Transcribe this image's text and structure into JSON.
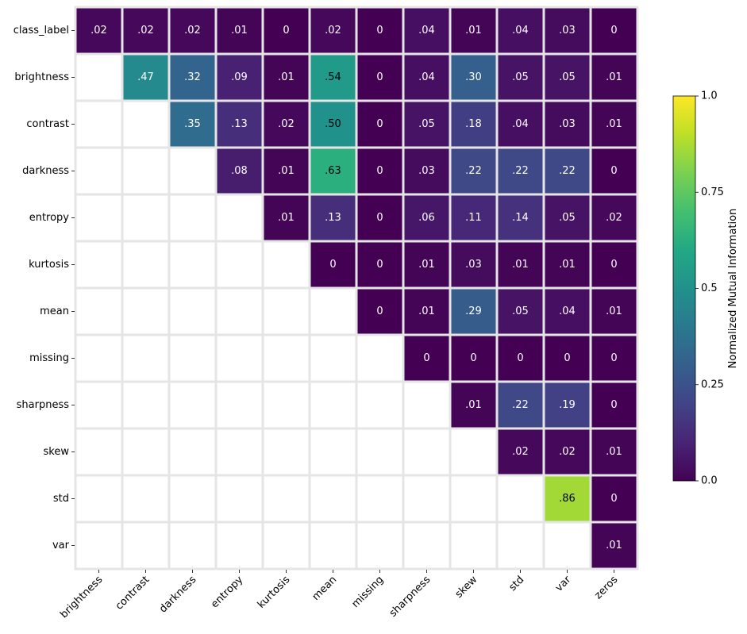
{
  "chart_data": {
    "type": "heatmap",
    "title": "",
    "row_labels": [
      "class_label",
      "brightness",
      "contrast",
      "darkness",
      "entropy",
      "kurtosis",
      "mean",
      "missing",
      "sharpness",
      "skew",
      "std",
      "var"
    ],
    "col_labels": [
      "brightness",
      "contrast",
      "darkness",
      "entropy",
      "kurtosis",
      "mean",
      "missing",
      "sharpness",
      "skew",
      "std",
      "var",
      "zeros"
    ],
    "values": [
      [
        0.02,
        0.02,
        0.02,
        0.01,
        0,
        0.02,
        0,
        0.04,
        0.01,
        0.04,
        0.03,
        0
      ],
      [
        null,
        0.47,
        0.32,
        0.09,
        0.01,
        0.54,
        0,
        0.04,
        0.3,
        0.05,
        0.05,
        0.01
      ],
      [
        null,
        null,
        0.35,
        0.13,
        0.02,
        0.5,
        0,
        0.05,
        0.18,
        0.04,
        0.03,
        0.01
      ],
      [
        null,
        null,
        null,
        0.08,
        0.01,
        0.63,
        0,
        0.03,
        0.22,
        0.22,
        0.22,
        0
      ],
      [
        null,
        null,
        null,
        null,
        0.01,
        0.13,
        0,
        0.06,
        0.11,
        0.14,
        0.05,
        0.02
      ],
      [
        null,
        null,
        null,
        null,
        null,
        0,
        0,
        0.01,
        0.03,
        0.01,
        0.01,
        0
      ],
      [
        null,
        null,
        null,
        null,
        null,
        null,
        0,
        0.01,
        0.29,
        0.05,
        0.04,
        0.01
      ],
      [
        null,
        null,
        null,
        null,
        null,
        null,
        null,
        0,
        0,
        0,
        0,
        0
      ],
      [
        null,
        null,
        null,
        null,
        null,
        null,
        null,
        null,
        0.01,
        0.22,
        0.19,
        0
      ],
      [
        null,
        null,
        null,
        null,
        null,
        null,
        null,
        null,
        null,
        0.02,
        0.02,
        0.01
      ],
      [
        null,
        null,
        null,
        null,
        null,
        null,
        null,
        null,
        null,
        null,
        0.86,
        0
      ],
      [
        null,
        null,
        null,
        null,
        null,
        null,
        null,
        null,
        null,
        null,
        null,
        0.01
      ]
    ],
    "value_labels": [
      [
        ".02",
        ".02",
        ".02",
        ".01",
        "0",
        ".02",
        "0",
        ".04",
        ".01",
        ".04",
        ".03",
        "0"
      ],
      [
        null,
        ".47",
        ".32",
        ".09",
        ".01",
        ".54",
        "0",
        ".04",
        ".30",
        ".05",
        ".05",
        ".01"
      ],
      [
        null,
        null,
        ".35",
        ".13",
        ".02",
        ".50",
        "0",
        ".05",
        ".18",
        ".04",
        ".03",
        ".01"
      ],
      [
        null,
        null,
        null,
        ".08",
        ".01",
        ".63",
        "0",
        ".03",
        ".22",
        ".22",
        ".22",
        "0"
      ],
      [
        null,
        null,
        null,
        null,
        ".01",
        ".13",
        "0",
        ".06",
        ".11",
        ".14",
        ".05",
        ".02"
      ],
      [
        null,
        null,
        null,
        null,
        null,
        "0",
        "0",
        ".01",
        ".03",
        ".01",
        ".01",
        "0"
      ],
      [
        null,
        null,
        null,
        null,
        null,
        null,
        "0",
        ".01",
        ".29",
        ".05",
        ".04",
        ".01"
      ],
      [
        null,
        null,
        null,
        null,
        null,
        null,
        null,
        "0",
        "0",
        "0",
        "0",
        "0"
      ],
      [
        null,
        null,
        null,
        null,
        null,
        null,
        null,
        null,
        ".01",
        ".22",
        ".19",
        "0"
      ],
      [
        null,
        null,
        null,
        null,
        null,
        null,
        null,
        null,
        null,
        ".02",
        ".02",
        ".01"
      ],
      [
        null,
        null,
        null,
        null,
        null,
        null,
        null,
        null,
        null,
        null,
        ".86",
        "0"
      ],
      [
        null,
        null,
        null,
        null,
        null,
        null,
        null,
        null,
        null,
        null,
        null,
        ".01"
      ]
    ],
    "colormap": "viridis",
    "colorbar": {
      "label": "Normalized Mutual Information",
      "range": [
        0,
        1
      ],
      "ticks": [
        0,
        0.25,
        0.5,
        0.75,
        1
      ],
      "tick_labels": [
        "0.0",
        "0.25",
        "0.5",
        "0.75",
        "1.0"
      ]
    },
    "grid_color": "#e5e5e5",
    "empty_cell_color": "#ffffff",
    "dark_text_color": "#000000",
    "light_text_color": "#ffffff"
  }
}
